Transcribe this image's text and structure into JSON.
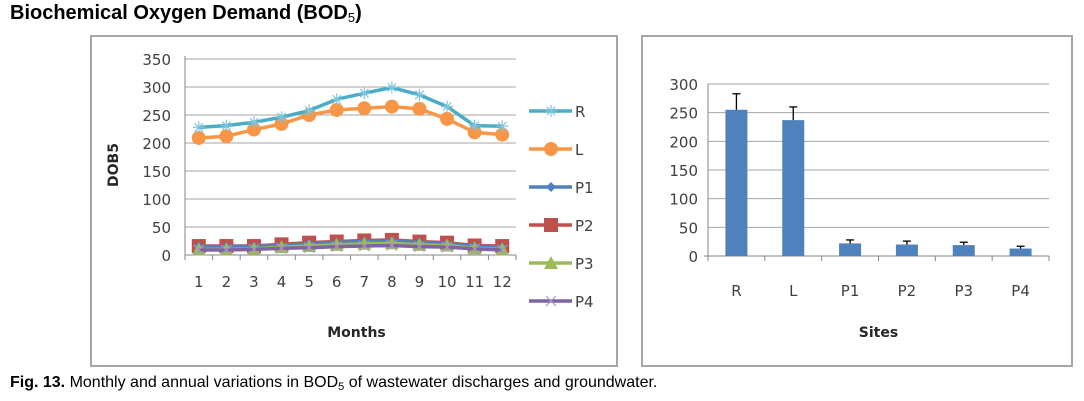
{
  "heading": {
    "text": "Biochemical Oxygen Demand (BOD",
    "subscript": "5",
    "close": ")"
  },
  "caption": {
    "label": "Fig. 13.",
    "text_before": " Monthly and annual variations in BOD",
    "subscript": "5",
    "text_after": " of wastewater discharges and groundwater."
  },
  "chart_data": [
    {
      "type": "line",
      "title": "",
      "xlabel": "Months",
      "ylabel": "DOB5",
      "ylim": [
        0,
        350
      ],
      "yticks": [
        0,
        50,
        100,
        150,
        200,
        250,
        300,
        350
      ],
      "grid": true,
      "legend_position": "right",
      "x": [
        "1",
        "2",
        "3",
        "4",
        "5",
        "6",
        "7",
        "8",
        "9",
        "10",
        "11",
        "12"
      ],
      "series": [
        {
          "name": "R",
          "color": "#4bacc6",
          "marker": "star",
          "values": [
            228,
            231,
            237,
            246,
            258,
            278,
            289,
            299,
            286,
            265,
            231,
            230
          ]
        },
        {
          "name": "L",
          "color": "#f79646",
          "marker": "circle",
          "values": [
            209,
            212,
            224,
            234,
            250,
            259,
            262,
            265,
            261,
            243,
            219,
            215
          ]
        },
        {
          "name": "P1",
          "color": "#4f81bd",
          "marker": "diamond",
          "values": [
            15,
            15,
            15,
            17,
            20,
            22,
            24,
            25,
            22,
            20,
            16,
            14
          ]
        },
        {
          "name": "P2",
          "color": "#c0504d",
          "marker": "square",
          "values": [
            16,
            16,
            16,
            19,
            22,
            24,
            26,
            27,
            24,
            22,
            17,
            16
          ]
        },
        {
          "name": "P3",
          "color": "#9bbb59",
          "marker": "triangle",
          "values": [
            10,
            10,
            11,
            14,
            16,
            18,
            20,
            21,
            18,
            17,
            12,
            10
          ]
        },
        {
          "name": "P4",
          "color": "#8064a2",
          "marker": "x",
          "values": [
            9,
            9,
            10,
            12,
            13,
            15,
            16,
            17,
            15,
            14,
            11,
            9
          ]
        }
      ]
    },
    {
      "type": "bar",
      "title": "",
      "xlabel": "Sites",
      "ylabel": "",
      "ylim": [
        0,
        300
      ],
      "yticks": [
        0,
        50,
        100,
        150,
        200,
        250,
        300
      ],
      "grid": true,
      "bar_color": "#4f81bd",
      "categories": [
        "R",
        "L",
        "P1",
        "P2",
        "P3",
        "P4"
      ],
      "values": [
        255,
        237,
        22,
        20,
        19,
        13
      ],
      "error_upper": [
        28,
        23,
        6,
        6,
        5,
        4
      ]
    }
  ]
}
